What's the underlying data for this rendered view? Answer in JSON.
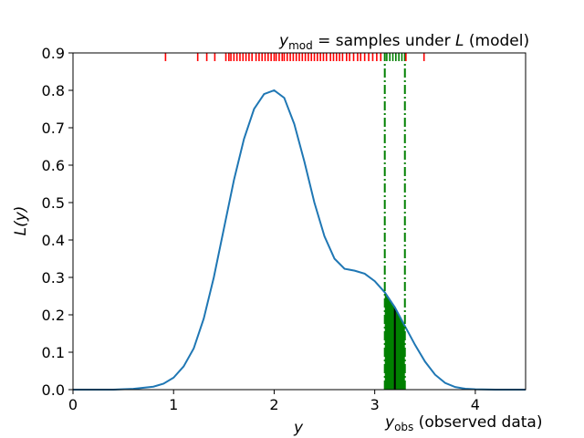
{
  "chart_data": {
    "type": "line",
    "xlabel": "y",
    "ylabel": "L(y)",
    "xlim": [
      0,
      4.5
    ],
    "ylim": [
      0,
      0.9
    ],
    "x_ticks": [
      0,
      1,
      2,
      3,
      4
    ],
    "x_tick_labels": [
      "0",
      "1",
      "2",
      "3",
      "4"
    ],
    "y_ticks": [
      0.0,
      0.1,
      0.2,
      0.3,
      0.4,
      0.5,
      0.6,
      0.7,
      0.8,
      0.9
    ],
    "y_tick_labels": [
      "0.0",
      "0.1",
      "0.2",
      "0.3",
      "0.4",
      "0.5",
      "0.6",
      "0.7",
      "0.8",
      "0.9"
    ],
    "grid": false,
    "series": [
      {
        "color": "#1f77b4",
        "x": [
          0,
          0.4,
          0.6,
          0.8,
          0.9,
          1.0,
          1.1,
          1.2,
          1.3,
          1.4,
          1.5,
          1.6,
          1.7,
          1.8,
          1.9,
          2.0,
          2.1,
          2.2,
          2.3,
          2.4,
          2.5,
          2.6,
          2.7,
          2.8,
          2.9,
          3.0,
          3.1,
          3.2,
          3.3,
          3.4,
          3.5,
          3.6,
          3.7,
          3.8,
          3.9,
          4.0,
          4.2,
          4.5
        ],
        "y": [
          0.0,
          0.0,
          0.002,
          0.008,
          0.016,
          0.032,
          0.062,
          0.11,
          0.19,
          0.3,
          0.43,
          0.56,
          0.67,
          0.75,
          0.79,
          0.8,
          0.78,
          0.71,
          0.61,
          0.5,
          0.41,
          0.35,
          0.323,
          0.318,
          0.31,
          0.29,
          0.26,
          0.22,
          0.17,
          0.12,
          0.075,
          0.04,
          0.018,
          0.007,
          0.0025,
          0.001,
          0.0,
          0.0
        ]
      }
    ],
    "observed_bin": {
      "x_start": 3.1,
      "x_end": 3.3,
      "color": "#008000"
    },
    "observed_value": {
      "x": 3.2,
      "color": "#000000"
    },
    "bin_bounds": [
      3.1,
      3.3
    ],
    "rug_samples": [
      0.92,
      1.24,
      1.33,
      1.41,
      1.52,
      1.55,
      1.57,
      1.6,
      1.63,
      1.66,
      1.69,
      1.72,
      1.75,
      1.78,
      1.82,
      1.85,
      1.88,
      1.91,
      1.94,
      1.97,
      2.0,
      2.02,
      2.05,
      2.08,
      2.1,
      2.13,
      2.16,
      2.19,
      2.22,
      2.25,
      2.28,
      2.31,
      2.34,
      2.37,
      2.4,
      2.43,
      2.46,
      2.49,
      2.52,
      2.56,
      2.59,
      2.62,
      2.65,
      2.68,
      2.72,
      2.75,
      2.79,
      2.83,
      2.86,
      2.9,
      2.94,
      2.98,
      3.02,
      3.06,
      3.12,
      3.15,
      3.18,
      3.21,
      3.24,
      3.27,
      3.31,
      3.49
    ],
    "rug_in_bin_color": "#008000",
    "rug_out_bin_color": "#ff0000"
  },
  "labels": {
    "top_title_main": "y",
    "top_title_sub": "mod",
    "top_title_rest": " = samples under ",
    "top_title_L": "L",
    "top_title_end": " (model)",
    "bottom_note_main": "y",
    "bottom_note_sub": "obs",
    "bottom_note_rest": " (observed data)"
  }
}
